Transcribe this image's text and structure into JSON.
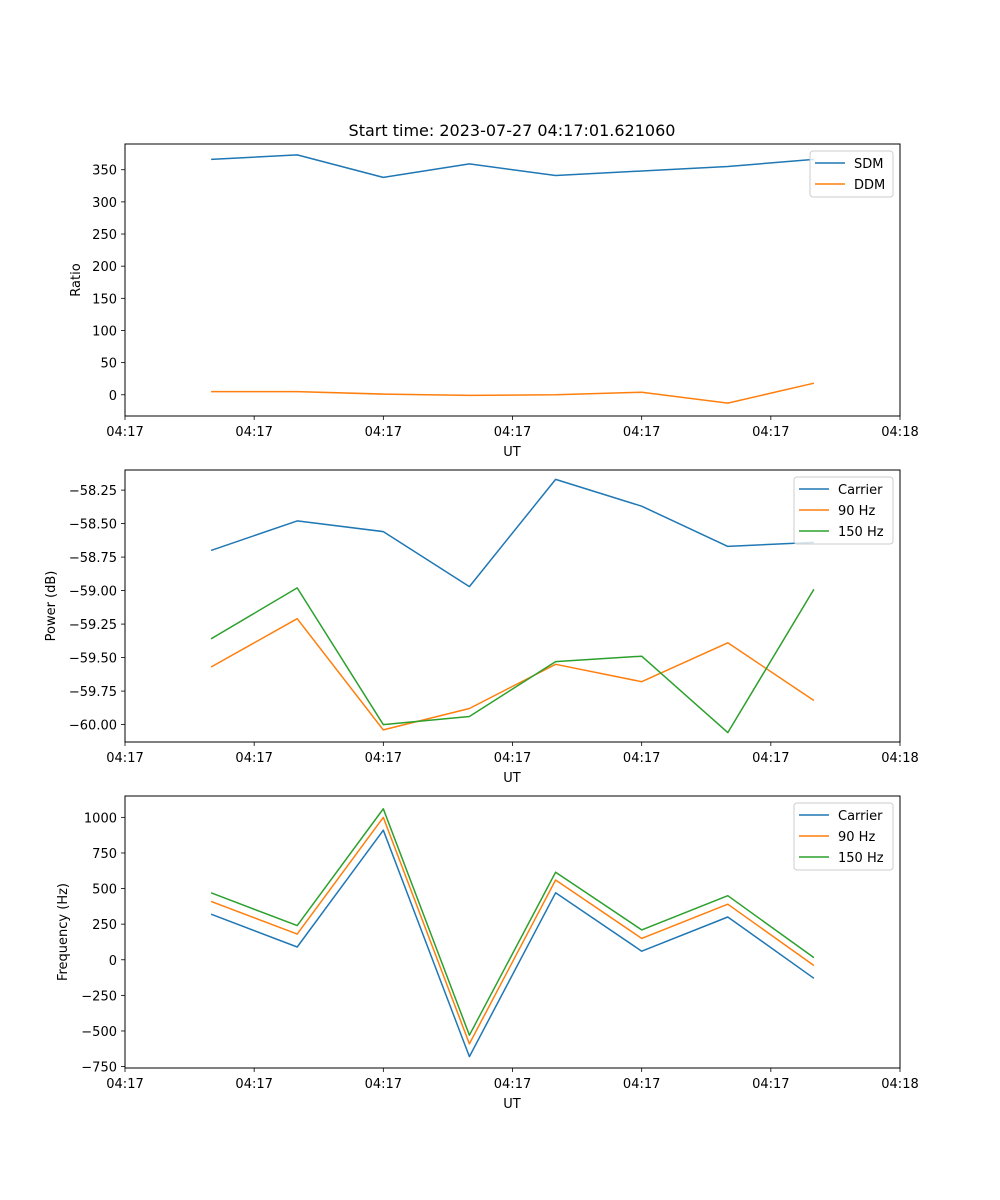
{
  "chart_data": [
    {
      "type": "line",
      "title": "Start time: 2023-07-27 04:17:01.621060",
      "xlabel": "UT",
      "ylabel": "Ratio",
      "x": [
        1,
        2,
        3,
        4,
        5,
        6,
        7,
        8
      ],
      "xlim": [
        0,
        9
      ],
      "xticks": [
        0,
        1.5,
        3,
        4.5,
        6,
        7.5,
        9
      ],
      "xtick_labels": [
        "04:17",
        "04:17",
        "04:17",
        "04:17",
        "04:17",
        "04:17",
        "04:18"
      ],
      "ylim": [
        -33,
        390
      ],
      "yticks": [
        0,
        50,
        100,
        150,
        200,
        250,
        300,
        350
      ],
      "series": [
        {
          "name": "SDM",
          "color": "#1f77b4",
          "values": [
            366,
            373,
            338,
            359,
            341,
            348,
            355,
            366
          ]
        },
        {
          "name": "DDM",
          "color": "#ff7f0e",
          "values": [
            5,
            5,
            1,
            -1,
            0,
            4,
            -13,
            18
          ]
        }
      ],
      "legend": "upper right"
    },
    {
      "type": "line",
      "title": "",
      "xlabel": "UT",
      "ylabel": "Power (dB)",
      "x": [
        1,
        2,
        3,
        4,
        5,
        6,
        7,
        8
      ],
      "xlim": [
        0,
        9
      ],
      "xticks": [
        0,
        1.5,
        3,
        4.5,
        6,
        7.5,
        9
      ],
      "xtick_labels": [
        "04:17",
        "04:17",
        "04:17",
        "04:17",
        "04:17",
        "04:17",
        "04:18"
      ],
      "ylim": [
        -60.13,
        -58.1
      ],
      "yticks": [
        -60.0,
        -59.75,
        -59.5,
        -59.25,
        -59.0,
        -58.75,
        -58.5,
        -58.25
      ],
      "ytick_labels": [
        "−60.00",
        "−59.75",
        "−59.50",
        "−59.25",
        "−59.00",
        "−58.75",
        "−58.50",
        "−58.25"
      ],
      "series": [
        {
          "name": "Carrier",
          "color": "#1f77b4",
          "values": [
            -58.7,
            -58.48,
            -58.56,
            -58.97,
            -58.17,
            -58.37,
            -58.67,
            -58.64
          ]
        },
        {
          "name": "90 Hz",
          "color": "#ff7f0e",
          "values": [
            -59.57,
            -59.21,
            -60.04,
            -59.88,
            -59.55,
            -59.68,
            -59.39,
            -59.82
          ]
        },
        {
          "name": "150 Hz",
          "color": "#2ca02c",
          "values": [
            -59.36,
            -58.98,
            -60.0,
            -59.94,
            -59.53,
            -59.49,
            -60.06,
            -58.99
          ]
        }
      ],
      "legend": "upper right"
    },
    {
      "type": "line",
      "title": "",
      "xlabel": "UT",
      "ylabel": "Frequency (Hz)",
      "x": [
        1,
        2,
        3,
        4,
        5,
        6,
        7,
        8
      ],
      "xlim": [
        0,
        9
      ],
      "xticks": [
        0,
        1.5,
        3,
        4.5,
        6,
        7.5,
        9
      ],
      "xtick_labels": [
        "04:17",
        "04:17",
        "04:17",
        "04:17",
        "04:17",
        "04:17",
        "04:18"
      ],
      "ylim": [
        -760,
        1150
      ],
      "yticks": [
        -750,
        -500,
        -250,
        0,
        250,
        500,
        750,
        1000
      ],
      "ytick_labels": [
        "−750",
        "−500",
        "−250",
        "0",
        "250",
        "500",
        "750",
        "1000"
      ],
      "series": [
        {
          "name": "Carrier",
          "color": "#1f77b4",
          "values": [
            320,
            90,
            910,
            -680,
            470,
            60,
            300,
            -130
          ]
        },
        {
          "name": "90 Hz",
          "color": "#ff7f0e",
          "values": [
            410,
            180,
            1000,
            -590,
            560,
            150,
            390,
            -40
          ]
        },
        {
          "name": "150 Hz",
          "color": "#2ca02c",
          "values": [
            470,
            240,
            1060,
            -530,
            615,
            210,
            450,
            15
          ]
        }
      ],
      "legend": "upper right"
    }
  ]
}
